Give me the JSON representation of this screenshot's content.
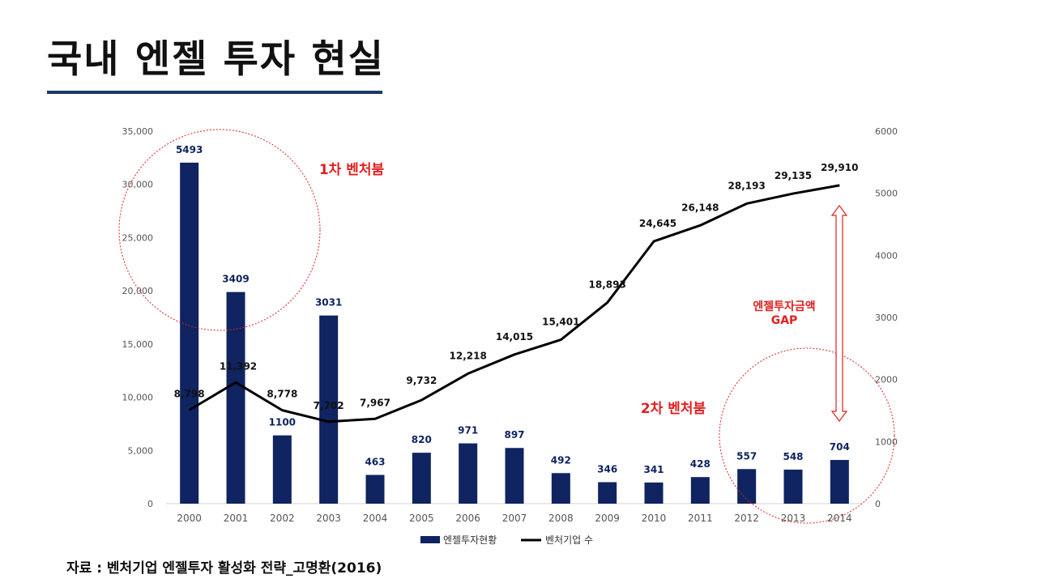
{
  "page": {
    "title": "국내 엔젤 투자 현실",
    "source": "자료 : 벤처기업 엔젤투자 활성화 전략_고명환(2016)"
  },
  "chart_data": {
    "type": "bar",
    "categories": [
      "2000",
      "2001",
      "2002",
      "2003",
      "2004",
      "2005",
      "2006",
      "2007",
      "2008",
      "2009",
      "2010",
      "2011",
      "2012",
      "2013",
      "2014"
    ],
    "series": [
      {
        "name": "엔젤투자현황",
        "type": "bar",
        "axis": "right",
        "color": "#0f2460",
        "values": [
          5493,
          3409,
          1100,
          3031,
          463,
          820,
          971,
          897,
          492,
          346,
          341,
          428,
          557,
          548,
          704
        ],
        "labels": [
          "5493",
          "3409",
          "1100",
          "3031",
          "463",
          "820",
          "971",
          "897",
          "492",
          "346",
          "341",
          "428",
          "557",
          "548",
          "704"
        ]
      },
      {
        "name": "벤처기업 수",
        "type": "line",
        "axis": "left",
        "color": "#000000",
        "values": [
          8798,
          11392,
          8778,
          7702,
          7967,
          9732,
          12218,
          14015,
          15401,
          18893,
          24645,
          26148,
          28193,
          29135,
          29910
        ],
        "labels": [
          "8,798",
          "11,392",
          "8,778",
          "7,702",
          "7,967",
          "9,732",
          "12,218",
          "14,015",
          "15,401",
          "18,893",
          "24,645",
          "26,148",
          "28,193",
          "29,135",
          "29,910"
        ]
      }
    ],
    "y_left": {
      "min": 0,
      "max": 35000,
      "ticks": [
        "0",
        "5,000",
        "10,000",
        "15,000",
        "20,000",
        "25,000",
        "30,000",
        "35,000"
      ]
    },
    "y_right": {
      "min": 0,
      "max": 6000,
      "ticks": [
        "0",
        "1000",
        "2000",
        "3000",
        "4000",
        "5000",
        "6000"
      ]
    },
    "legend_position": "bottom",
    "annotations": {
      "first_boom": "1차 벤처붐",
      "second_boom": "2차 벤처붐",
      "gap_line1": "엔젤투자금액",
      "gap_line2": "GAP"
    },
    "annotation_color": "#e02020",
    "grid": false
  }
}
